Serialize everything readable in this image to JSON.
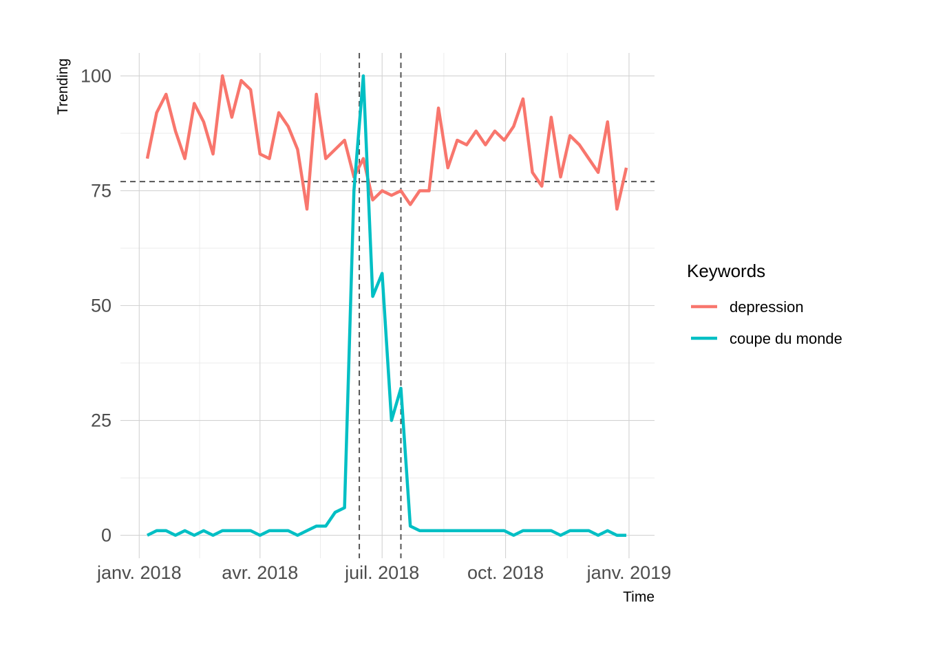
{
  "chart_data": {
    "type": "line",
    "xlabel": "Time",
    "ylabel": "Trending",
    "xlim": [
      "2017-12-18",
      "2019-01-20"
    ],
    "ylim": [
      -5,
      105
    ],
    "y_ticks": [
      0,
      25,
      50,
      75,
      100
    ],
    "x_ticks": [
      {
        "date": "2018-01-01",
        "label": "janv. 2018"
      },
      {
        "date": "2018-04-01",
        "label": "avr. 2018"
      },
      {
        "date": "2018-07-01",
        "label": "juil. 2018"
      },
      {
        "date": "2018-10-01",
        "label": "oct. 2018"
      },
      {
        "date": "2019-01-01",
        "label": "janv. 2019"
      }
    ],
    "x_minor_ticks": [
      "2018-02-15",
      "2018-05-16",
      "2018-08-16",
      "2018-11-16"
    ],
    "grid": true,
    "legend": {
      "title": "Keywords",
      "position": "right"
    },
    "reference_lines": {
      "horizontal": [
        77
      ],
      "vertical": [
        "2018-06-14",
        "2018-07-15"
      ]
    },
    "x": [
      "2018-01-07",
      "2018-01-14",
      "2018-01-21",
      "2018-01-28",
      "2018-02-04",
      "2018-02-11",
      "2018-02-18",
      "2018-02-25",
      "2018-03-04",
      "2018-03-11",
      "2018-03-18",
      "2018-03-25",
      "2018-04-01",
      "2018-04-08",
      "2018-04-15",
      "2018-04-22",
      "2018-04-29",
      "2018-05-06",
      "2018-05-13",
      "2018-05-20",
      "2018-05-27",
      "2018-06-03",
      "2018-06-10",
      "2018-06-17",
      "2018-06-24",
      "2018-07-01",
      "2018-07-08",
      "2018-07-15",
      "2018-07-22",
      "2018-07-29",
      "2018-08-05",
      "2018-08-12",
      "2018-08-19",
      "2018-08-26",
      "2018-09-02",
      "2018-09-09",
      "2018-09-16",
      "2018-09-23",
      "2018-09-30",
      "2018-10-07",
      "2018-10-14",
      "2018-10-21",
      "2018-10-28",
      "2018-11-04",
      "2018-11-11",
      "2018-11-18",
      "2018-11-25",
      "2018-12-02",
      "2018-12-09",
      "2018-12-16",
      "2018-12-23",
      "2018-12-30"
    ],
    "series": [
      {
        "name": "depression",
        "color": "#F8766D",
        "values": [
          82,
          92,
          96,
          88,
          82,
          94,
          90,
          83,
          100,
          91,
          99,
          97,
          83,
          82,
          92,
          89,
          84,
          71,
          96,
          82,
          84,
          86,
          78,
          82,
          73,
          75,
          74,
          75,
          72,
          75,
          75,
          93,
          80,
          86,
          85,
          88,
          85,
          88,
          86,
          89,
          95,
          79,
          76,
          91,
          78,
          87,
          85,
          82,
          79,
          90,
          71,
          80
        ]
      },
      {
        "name": "coupe du monde",
        "color": "#00BFC4",
        "values": [
          0,
          1,
          1,
          0,
          1,
          0,
          1,
          0,
          1,
          1,
          1,
          1,
          0,
          1,
          1,
          1,
          0,
          1,
          2,
          2,
          5,
          6,
          75,
          100,
          52,
          57,
          25,
          32,
          2,
          1,
          1,
          1,
          1,
          1,
          1,
          1,
          1,
          1,
          1,
          0,
          1,
          1,
          1,
          1,
          0,
          1,
          1,
          1,
          0,
          1,
          0,
          0
        ]
      }
    ]
  }
}
